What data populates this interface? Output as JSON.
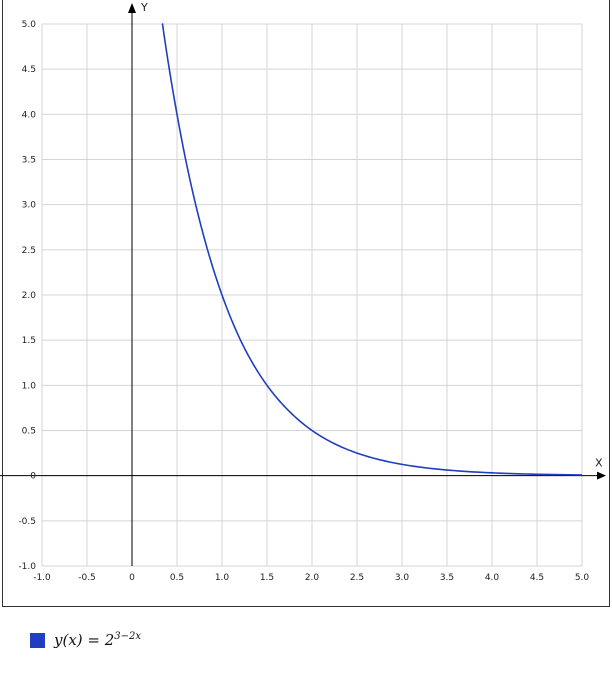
{
  "chart_data": {
    "type": "line",
    "function": "2^(3-2x)",
    "xlim": [
      -1.0,
      5.0
    ],
    "ylim": [
      -1.0,
      5.0
    ],
    "xlabel": "X",
    "ylabel": "Y",
    "x_tick_labels": [
      "-1.0",
      "-0.5",
      "0",
      "0.5",
      "1.0",
      "1.5",
      "2.0",
      "2.5",
      "3.0",
      "3.5",
      "4.0",
      "4.5",
      "5.0"
    ],
    "x_ticks": [
      -1.0,
      -0.5,
      0,
      0.5,
      1.0,
      1.5,
      2.0,
      2.5,
      3.0,
      3.5,
      4.0,
      4.5,
      5.0
    ],
    "y_tick_labels": [
      "5.0",
      "4.5",
      "4.0",
      "3.5",
      "3.0",
      "2.5",
      "2.0",
      "1.5",
      "1.0",
      "0.5",
      "0",
      "-0.5",
      "-1.0"
    ],
    "y_ticks": [
      5.0,
      4.5,
      4.0,
      3.5,
      3.0,
      2.5,
      2.0,
      1.5,
      1.0,
      0.5,
      0,
      -0.5,
      -1.0
    ],
    "grid": true,
    "series": [
      {
        "label_text": "y(x) = 2",
        "label_exponent": "3−2x",
        "color": "#1f3fbf",
        "x": [
          0.333,
          0.4,
          0.5,
          0.6,
          0.75,
          1.0,
          1.25,
          1.5,
          1.75,
          2.0,
          2.5,
          3.0,
          3.5,
          4.0,
          4.5,
          5.0
        ],
        "y": [
          5.04,
          4.59,
          4.0,
          3.48,
          2.83,
          2.0,
          1.41,
          1.0,
          0.71,
          0.5,
          0.25,
          0.125,
          0.0625,
          0.03125,
          0.0156,
          0.0078
        ]
      }
    ],
    "legend_position": "bottom-left"
  },
  "colors": {
    "grid": "#d4d4d4",
    "axis": "#000000",
    "curve": "#1f3fbf",
    "frame": "#333333"
  }
}
